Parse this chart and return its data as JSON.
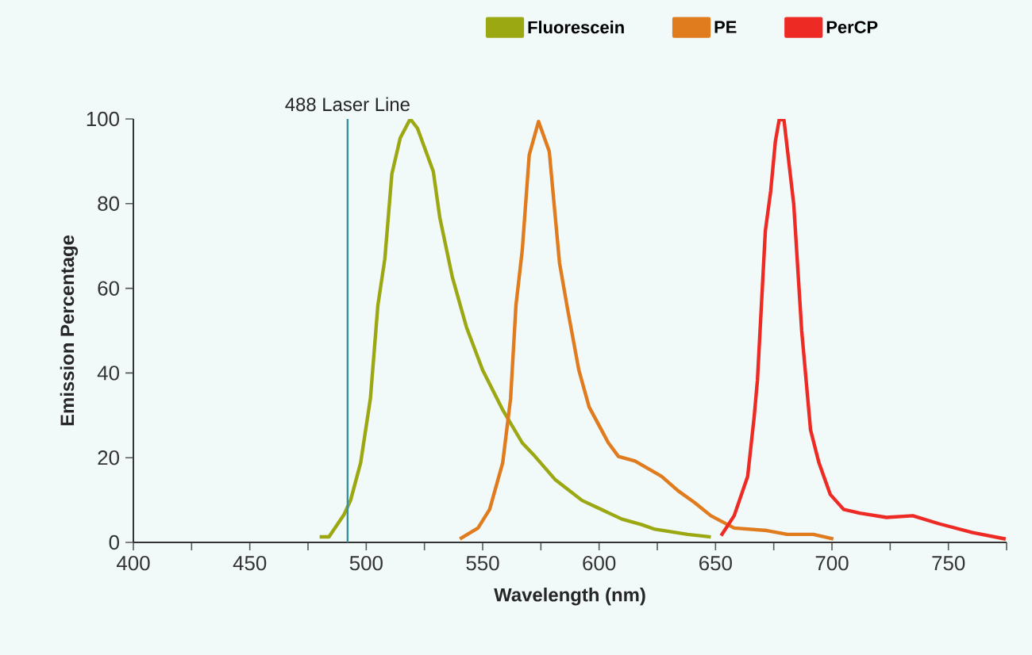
{
  "chart_data": {
    "type": "line",
    "xlabel": "Wavelength (nm)",
    "ylabel": "Emission Percentage",
    "legend": "top",
    "grid": false,
    "marker": "none",
    "line_style": "solid",
    "xlim": [
      400,
      775
    ],
    "ylim": [
      0,
      100
    ],
    "xticks": [
      400,
      {
        "value": 425,
        "label": null
      },
      450,
      {
        "value": 475,
        "label": null
      },
      500,
      {
        "value": 525,
        "label": null
      },
      550,
      {
        "value": 575,
        "label": null
      },
      600,
      {
        "value": 625,
        "label": null
      },
      650,
      {
        "value": 675,
        "label": null
      },
      700,
      {
        "value": 725,
        "label": null
      },
      750,
      {
        "value": 775,
        "label": null
      }
    ],
    "yticks": [
      0,
      20,
      40,
      60,
      80,
      100
    ],
    "ref_lines": [
      {
        "axis": "x",
        "value": 492,
        "label": "488 Laser Line",
        "color": "#3a8f9a"
      }
    ],
    "series": [
      {
        "name": "Fluorescein",
        "color": "#9ba812",
        "x": [
          480,
          484,
          490.5,
          493.3,
          497.6,
          501.8,
          505,
          508,
          511,
          514.6,
          518.9,
          522,
          528.8,
          531.6,
          537,
          543,
          550,
          558.6,
          567,
          572.5,
          581,
          592.7,
          609.8,
          618.3,
          624,
          638,
          648
        ],
        "values": [
          1.3,
          1.3,
          6.6,
          10,
          18.8,
          34,
          56,
          67,
          87,
          95.5,
          100,
          97.8,
          87.6,
          76.7,
          62.6,
          50.9,
          40.7,
          31.3,
          23.5,
          20.3,
          14.9,
          9.9,
          5.5,
          4.2,
          3.1,
          1.9,
          1.3
        ]
      },
      {
        "name": "PE",
        "color": "#e07b1e",
        "x": [
          540.2,
          548,
          553,
          558.6,
          562,
          564.3,
          567,
          570,
          574,
          578.6,
          583,
          586.5,
          591.3,
          595.7,
          604,
          608.3,
          615.4,
          626.8,
          633.9,
          641,
          648,
          658,
          672,
          680.8,
          692,
          700.6
        ],
        "values": [
          0.8,
          3.4,
          7.8,
          18.8,
          34,
          56,
          69,
          91.5,
          99.4,
          92.3,
          66,
          55,
          40.7,
          32,
          23.5,
          20.3,
          19.2,
          15.6,
          12.2,
          9.4,
          6.3,
          3.4,
          2.8,
          1.9,
          1.9,
          0.8
        ]
      },
      {
        "name": "PerCP",
        "color": "#ee2a24",
        "x": [
          652.4,
          658,
          663.8,
          666.6,
          668,
          671.4,
          673.7,
          675.7,
          677.4,
          679.4,
          683.6,
          687,
          690.8,
          694.4,
          699.3,
          705,
          712,
          723.4,
          734.7,
          746,
          760.4,
          774.6
        ],
        "values": [
          1.6,
          6.3,
          15.6,
          29.7,
          38.3,
          73.6,
          83,
          94.7,
          100,
          99.7,
          79.8,
          50,
          26.6,
          18.8,
          11.3,
          7.8,
          6.9,
          5.9,
          6.3,
          4.4,
          2.3,
          0.8
        ]
      }
    ]
  }
}
